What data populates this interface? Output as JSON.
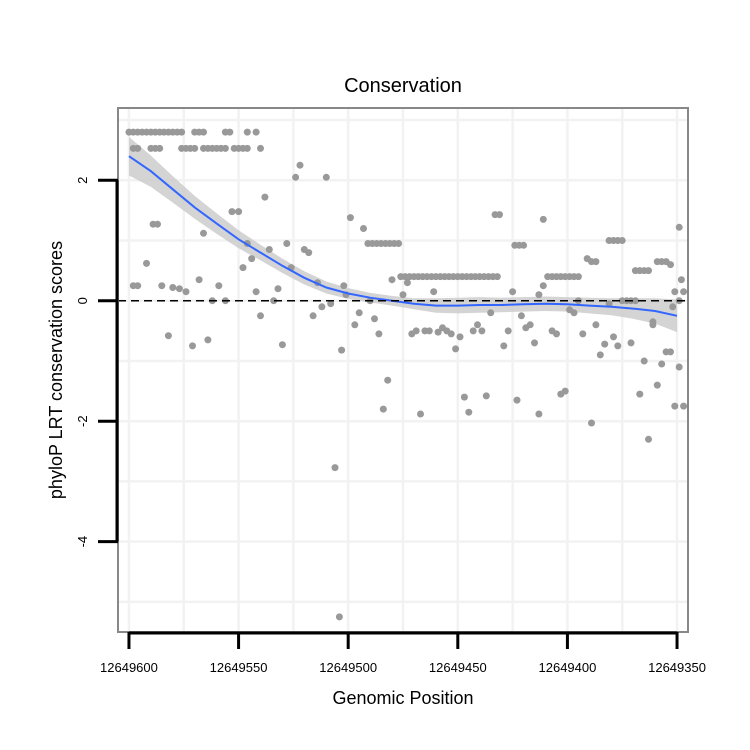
{
  "chart_data": {
    "type": "scatter",
    "title": "Conservation",
    "xlabel": "Genomic Position",
    "ylabel": "phyloP LRT conservation scores",
    "xlim": [
      12649605,
      12649345
    ],
    "ylim": [
      -5.5,
      3.2
    ],
    "x_ticks": [
      12649600,
      12649550,
      12649500,
      12649450,
      12649400,
      12649350
    ],
    "x_tick_labels": [
      "12649600",
      "12649550",
      "12649500",
      "12649450",
      "12649400",
      "12649350"
    ],
    "y_ticks": [
      2,
      0,
      -2,
      -4
    ],
    "y_tick_labels": [
      "2",
      "0",
      "-2",
      "-4"
    ],
    "y_minor_gridlines": [
      3,
      1,
      -1,
      -3,
      -5
    ],
    "reference_line": {
      "y": 0,
      "style": "dashed"
    },
    "colors": {
      "points": "#999999",
      "smooth_line": "#3366ff",
      "confidence_band": "#cccccc",
      "panel_border": "#888888",
      "grid": "#f2f2f2"
    },
    "points": [
      [
        12649600,
        2.8
      ],
      [
        12649598,
        2.8
      ],
      [
        12649596,
        2.8
      ],
      [
        12649594,
        2.8
      ],
      [
        12649592,
        2.8
      ],
      [
        12649590,
        2.8
      ],
      [
        12649588,
        2.8
      ],
      [
        12649586,
        2.8
      ],
      [
        12649584,
        2.8
      ],
      [
        12649582,
        2.8
      ],
      [
        12649580,
        2.8
      ],
      [
        12649578,
        2.8
      ],
      [
        12649576,
        2.8
      ],
      [
        12649570,
        2.8
      ],
      [
        12649568,
        2.8
      ],
      [
        12649566,
        2.8
      ],
      [
        12649556,
        2.8
      ],
      [
        12649554,
        2.8
      ],
      [
        12649546,
        2.8
      ],
      [
        12649542,
        2.8
      ],
      [
        12649598,
        2.53
      ],
      [
        12649596,
        2.53
      ],
      [
        12649590,
        2.53
      ],
      [
        12649588,
        2.53
      ],
      [
        12649586,
        2.53
      ],
      [
        12649576,
        2.53
      ],
      [
        12649574,
        2.53
      ],
      [
        12649572,
        2.53
      ],
      [
        12649570,
        2.53
      ],
      [
        12649566,
        2.53
      ],
      [
        12649564,
        2.53
      ],
      [
        12649562,
        2.53
      ],
      [
        12649560,
        2.53
      ],
      [
        12649558,
        2.53
      ],
      [
        12649556,
        2.53
      ],
      [
        12649552,
        2.53
      ],
      [
        12649550,
        2.53
      ],
      [
        12649548,
        2.53
      ],
      [
        12649546,
        2.53
      ],
      [
        12649540,
        2.53
      ],
      [
        12649598,
        0.25
      ],
      [
        12649596,
        0.25
      ],
      [
        12649592,
        0.62
      ],
      [
        12649589,
        1.27
      ],
      [
        12649587,
        1.27
      ],
      [
        12649585,
        0.25
      ],
      [
        12649582,
        -0.58
      ],
      [
        12649580,
        0.22
      ],
      [
        12649577,
        0.2
      ],
      [
        12649574,
        0.15
      ],
      [
        12649571,
        -0.75
      ],
      [
        12649568,
        0.35
      ],
      [
        12649566,
        1.12
      ],
      [
        12649564,
        -0.65
      ],
      [
        12649562,
        0.0
      ],
      [
        12649559,
        0.25
      ],
      [
        12649556,
        0.0
      ],
      [
        12649553,
        1.48
      ],
      [
        12649550,
        1.48
      ],
      [
        12649548,
        0.55
      ],
      [
        12649546,
        0.95
      ],
      [
        12649544,
        0.7
      ],
      [
        12649542,
        0.15
      ],
      [
        12649540,
        -0.25
      ],
      [
        12649538,
        1.72
      ],
      [
        12649536,
        0.85
      ],
      [
        12649534,
        0.0
      ],
      [
        12649532,
        0.2
      ],
      [
        12649530,
        -0.73
      ],
      [
        12649528,
        0.95
      ],
      [
        12649526,
        0.55
      ],
      [
        12649524,
        2.05
      ],
      [
        12649522,
        2.25
      ],
      [
        12649520,
        0.85
      ],
      [
        12649518,
        0.8
      ],
      [
        12649516,
        -0.25
      ],
      [
        12649514,
        0.3
      ],
      [
        12649512,
        -0.1
      ],
      [
        12649510,
        2.05
      ],
      [
        12649508,
        -0.05
      ],
      [
        12649506,
        -2.77
      ],
      [
        12649504,
        -5.25
      ],
      [
        12649503,
        -0.82
      ],
      [
        12649502,
        0.25
      ],
      [
        12649501,
        0.1
      ],
      [
        12649499,
        1.38
      ],
      [
        12649497,
        -0.4
      ],
      [
        12649495,
        -0.2
      ],
      [
        12649493,
        1.2
      ],
      [
        12649491,
        0.95
      ],
      [
        12649489,
        0.95
      ],
      [
        12649487,
        0.95
      ],
      [
        12649485,
        0.95
      ],
      [
        12649483,
        0.95
      ],
      [
        12649481,
        0.95
      ],
      [
        12649479,
        0.95
      ],
      [
        12649477,
        0.95
      ],
      [
        12649490,
        0.0
      ],
      [
        12649488,
        -0.3
      ],
      [
        12649486,
        -0.55
      ],
      [
        12649484,
        -1.8
      ],
      [
        12649482,
        -1.32
      ],
      [
        12649480,
        0.35
      ],
      [
        12649476,
        0.4
      ],
      [
        12649474,
        0.4
      ],
      [
        12649472,
        0.4
      ],
      [
        12649470,
        0.4
      ],
      [
        12649468,
        0.4
      ],
      [
        12649466,
        0.4
      ],
      [
        12649464,
        0.4
      ],
      [
        12649462,
        0.4
      ],
      [
        12649460,
        0.4
      ],
      [
        12649458,
        0.4
      ],
      [
        12649456,
        0.4
      ],
      [
        12649454,
        0.4
      ],
      [
        12649452,
        0.4
      ],
      [
        12649450,
        0.4
      ],
      [
        12649448,
        0.4
      ],
      [
        12649446,
        0.4
      ],
      [
        12649444,
        0.4
      ],
      [
        12649442,
        0.4
      ],
      [
        12649440,
        0.4
      ],
      [
        12649438,
        0.4
      ],
      [
        12649436,
        0.4
      ],
      [
        12649434,
        0.4
      ],
      [
        12649432,
        0.4
      ],
      [
        12649475,
        0.1
      ],
      [
        12649473,
        0.3
      ],
      [
        12649471,
        -0.55
      ],
      [
        12649469,
        -0.5
      ],
      [
        12649467,
        -1.88
      ],
      [
        12649465,
        -0.5
      ],
      [
        12649463,
        -0.5
      ],
      [
        12649461,
        0.15
      ],
      [
        12649459,
        -0.52
      ],
      [
        12649457,
        -0.45
      ],
      [
        12649455,
        -0.5
      ],
      [
        12649453,
        -0.55
      ],
      [
        12649451,
        -0.8
      ],
      [
        12649449,
        -0.6
      ],
      [
        12649447,
        -1.6
      ],
      [
        12649445,
        -1.85
      ],
      [
        12649443,
        -0.5
      ],
      [
        12649441,
        -0.4
      ],
      [
        12649439,
        -0.5
      ],
      [
        12649437,
        -1.58
      ],
      [
        12649435,
        -0.2
      ],
      [
        12649433,
        1.43
      ],
      [
        12649431,
        1.43
      ],
      [
        12649429,
        -0.75
      ],
      [
        12649427,
        -0.5
      ],
      [
        12649424,
        0.92
      ],
      [
        12649422,
        0.92
      ],
      [
        12649420,
        0.92
      ],
      [
        12649425,
        0.15
      ],
      [
        12649423,
        -1.65
      ],
      [
        12649421,
        -0.25
      ],
      [
        12649419,
        -0.45
      ],
      [
        12649417,
        -0.4
      ],
      [
        12649415,
        -0.7
      ],
      [
        12649413,
        -1.88
      ],
      [
        12649411,
        1.35
      ],
      [
        12649413,
        0.1
      ],
      [
        12649411,
        0.25
      ],
      [
        12649409,
        0.4
      ],
      [
        12649407,
        0.4
      ],
      [
        12649405,
        0.4
      ],
      [
        12649403,
        0.4
      ],
      [
        12649401,
        0.4
      ],
      [
        12649399,
        0.4
      ],
      [
        12649397,
        0.4
      ],
      [
        12649395,
        0.4
      ],
      [
        12649407,
        -0.5
      ],
      [
        12649405,
        -0.55
      ],
      [
        12649403,
        -1.55
      ],
      [
        12649401,
        -1.5
      ],
      [
        12649399,
        -0.15
      ],
      [
        12649397,
        -0.2
      ],
      [
        12649395,
        0.0
      ],
      [
        12649393,
        -0.55
      ],
      [
        12649391,
        0.7
      ],
      [
        12649389,
        0.65
      ],
      [
        12649387,
        0.65
      ],
      [
        12649389,
        -2.03
      ],
      [
        12649387,
        -0.4
      ],
      [
        12649385,
        -0.9
      ],
      [
        12649383,
        -0.72
      ],
      [
        12649381,
        1.0
      ],
      [
        12649379,
        1.0
      ],
      [
        12649377,
        1.0
      ],
      [
        12649375,
        1.0
      ],
      [
        12649381,
        -0.05
      ],
      [
        12649379,
        -0.6
      ],
      [
        12649377,
        -0.75
      ],
      [
        12649375,
        0.0
      ],
      [
        12649373,
        0.0
      ],
      [
        12649371,
        0.0
      ],
      [
        12649369,
        0.0
      ],
      [
        12649371,
        -0.7
      ],
      [
        12649369,
        0.5
      ],
      [
        12649367,
        0.5
      ],
      [
        12649365,
        0.5
      ],
      [
        12649363,
        0.5
      ],
      [
        12649367,
        -1.55
      ],
      [
        12649365,
        -1.0
      ],
      [
        12649363,
        -2.3
      ],
      [
        12649361,
        -0.35
      ],
      [
        12649359,
        -1.4
      ],
      [
        12649361,
        -0.4
      ],
      [
        12649359,
        0.65
      ],
      [
        12649357,
        0.65
      ],
      [
        12649355,
        0.65
      ],
      [
        12649353,
        0.6
      ],
      [
        12649357,
        -1.05
      ],
      [
        12649355,
        -0.85
      ],
      [
        12649353,
        -0.85
      ],
      [
        12649351,
        0.15
      ],
      [
        12649349,
        -1.1
      ],
      [
        12649351,
        -1.75
      ],
      [
        12649349,
        1.22
      ],
      [
        12649348,
        0.35
      ],
      [
        12649347,
        -1.75
      ],
      [
        12649347,
        0.15
      ],
      [
        12649349,
        0.0
      ],
      [
        12649352,
        -0.1
      ]
    ],
    "smooth_line": [
      [
        12649600,
        2.4
      ],
      [
        12649590,
        2.15
      ],
      [
        12649580,
        1.85
      ],
      [
        12649570,
        1.55
      ],
      [
        12649560,
        1.28
      ],
      [
        12649550,
        1.02
      ],
      [
        12649540,
        0.8
      ],
      [
        12649530,
        0.58
      ],
      [
        12649520,
        0.38
      ],
      [
        12649510,
        0.22
      ],
      [
        12649500,
        0.12
      ],
      [
        12649490,
        0.05
      ],
      [
        12649480,
        0.0
      ],
      [
        12649470,
        -0.05
      ],
      [
        12649460,
        -0.08
      ],
      [
        12649450,
        -0.08
      ],
      [
        12649440,
        -0.07
      ],
      [
        12649430,
        -0.07
      ],
      [
        12649420,
        -0.06
      ],
      [
        12649410,
        -0.05
      ],
      [
        12649400,
        -0.06
      ],
      [
        12649390,
        -0.08
      ],
      [
        12649380,
        -0.1
      ],
      [
        12649370,
        -0.13
      ],
      [
        12649360,
        -0.17
      ],
      [
        12649350,
        -0.25
      ]
    ],
    "ci_upper": [
      [
        12649600,
        2.72
      ],
      [
        12649590,
        2.41
      ],
      [
        12649580,
        2.07
      ],
      [
        12649570,
        1.74
      ],
      [
        12649560,
        1.45
      ],
      [
        12649550,
        1.17
      ],
      [
        12649540,
        0.93
      ],
      [
        12649530,
        0.7
      ],
      [
        12649520,
        0.49
      ],
      [
        12649510,
        0.32
      ],
      [
        12649500,
        0.21
      ],
      [
        12649490,
        0.13
      ],
      [
        12649480,
        0.08
      ],
      [
        12649470,
        0.04
      ],
      [
        12649460,
        0.04
      ],
      [
        12649450,
        0.05
      ],
      [
        12649440,
        0.06
      ],
      [
        12649430,
        0.05
      ],
      [
        12649420,
        0.06
      ],
      [
        12649410,
        0.07
      ],
      [
        12649400,
        0.06
      ],
      [
        12649390,
        0.05
      ],
      [
        12649380,
        0.04
      ],
      [
        12649370,
        0.04
      ],
      [
        12649360,
        0.04
      ],
      [
        12649350,
        0.02
      ]
    ],
    "ci_lower": [
      [
        12649600,
        2.08
      ],
      [
        12649590,
        1.89
      ],
      [
        12649580,
        1.63
      ],
      [
        12649570,
        1.36
      ],
      [
        12649560,
        1.11
      ],
      [
        12649550,
        0.87
      ],
      [
        12649540,
        0.67
      ],
      [
        12649530,
        0.46
      ],
      [
        12649520,
        0.27
      ],
      [
        12649510,
        0.12
      ],
      [
        12649500,
        0.03
      ],
      [
        12649490,
        -0.03
      ],
      [
        12649480,
        -0.08
      ],
      [
        12649470,
        -0.14
      ],
      [
        12649460,
        -0.2
      ],
      [
        12649450,
        -0.21
      ],
      [
        12649440,
        -0.2
      ],
      [
        12649430,
        -0.19
      ],
      [
        12649420,
        -0.18
      ],
      [
        12649410,
        -0.17
      ],
      [
        12649400,
        -0.18
      ],
      [
        12649390,
        -0.21
      ],
      [
        12649380,
        -0.24
      ],
      [
        12649370,
        -0.3
      ],
      [
        12649360,
        -0.38
      ],
      [
        12649350,
        -0.52
      ]
    ]
  }
}
